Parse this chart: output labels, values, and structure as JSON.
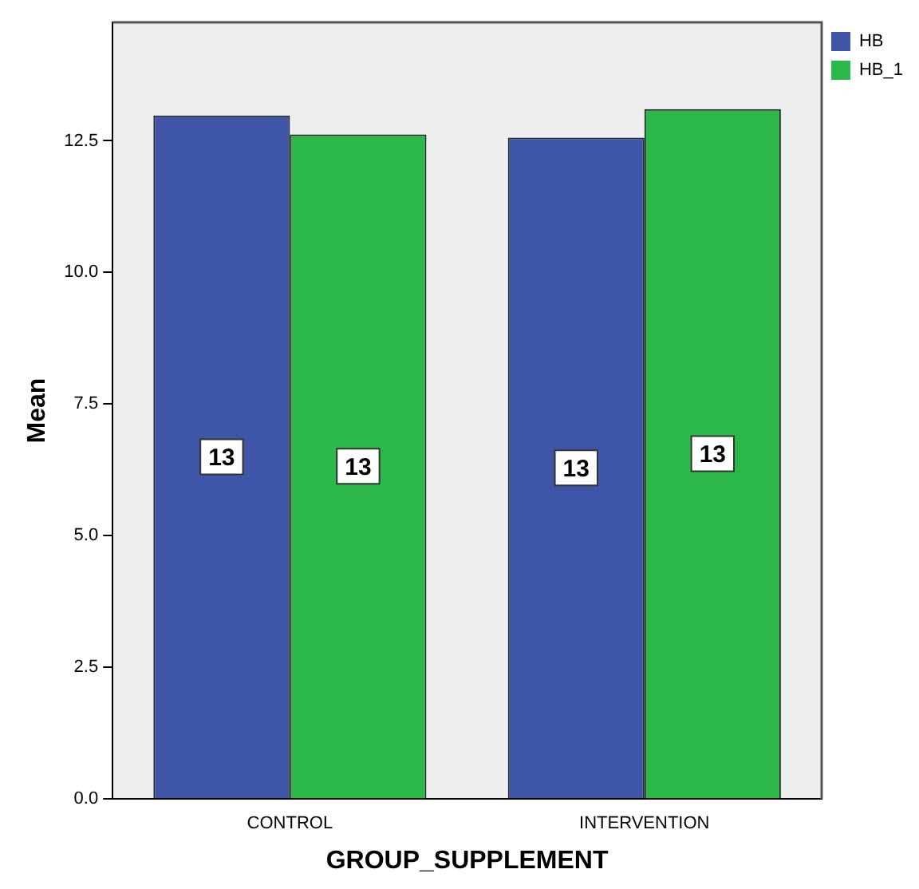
{
  "chart_data": {
    "type": "bar",
    "xlabel": "GROUP_SUPPLEMENT",
    "ylabel": "Mean",
    "categories": [
      "CONTROL",
      "INTERVENTION"
    ],
    "series": [
      {
        "name": "HB",
        "color": "#3f56a8",
        "values": [
          12.98,
          12.56
        ],
        "value_labels": [
          "13",
          "13"
        ]
      },
      {
        "name": "HB_1",
        "color": "#2db84a",
        "values": [
          12.62,
          13.1
        ],
        "value_labels": [
          "13",
          "13"
        ]
      }
    ],
    "ylim": [
      0,
      14.75
    ],
    "yticks": [
      {
        "value": 0,
        "label": "0.0"
      },
      {
        "value": 2.5,
        "label": "2.5"
      },
      {
        "value": 5,
        "label": "5.0"
      },
      {
        "value": 7.5,
        "label": "7.5"
      },
      {
        "value": 10,
        "label": "10.0"
      },
      {
        "value": 12.5,
        "label": "12.5"
      }
    ],
    "grid": false,
    "legend": "top right"
  }
}
